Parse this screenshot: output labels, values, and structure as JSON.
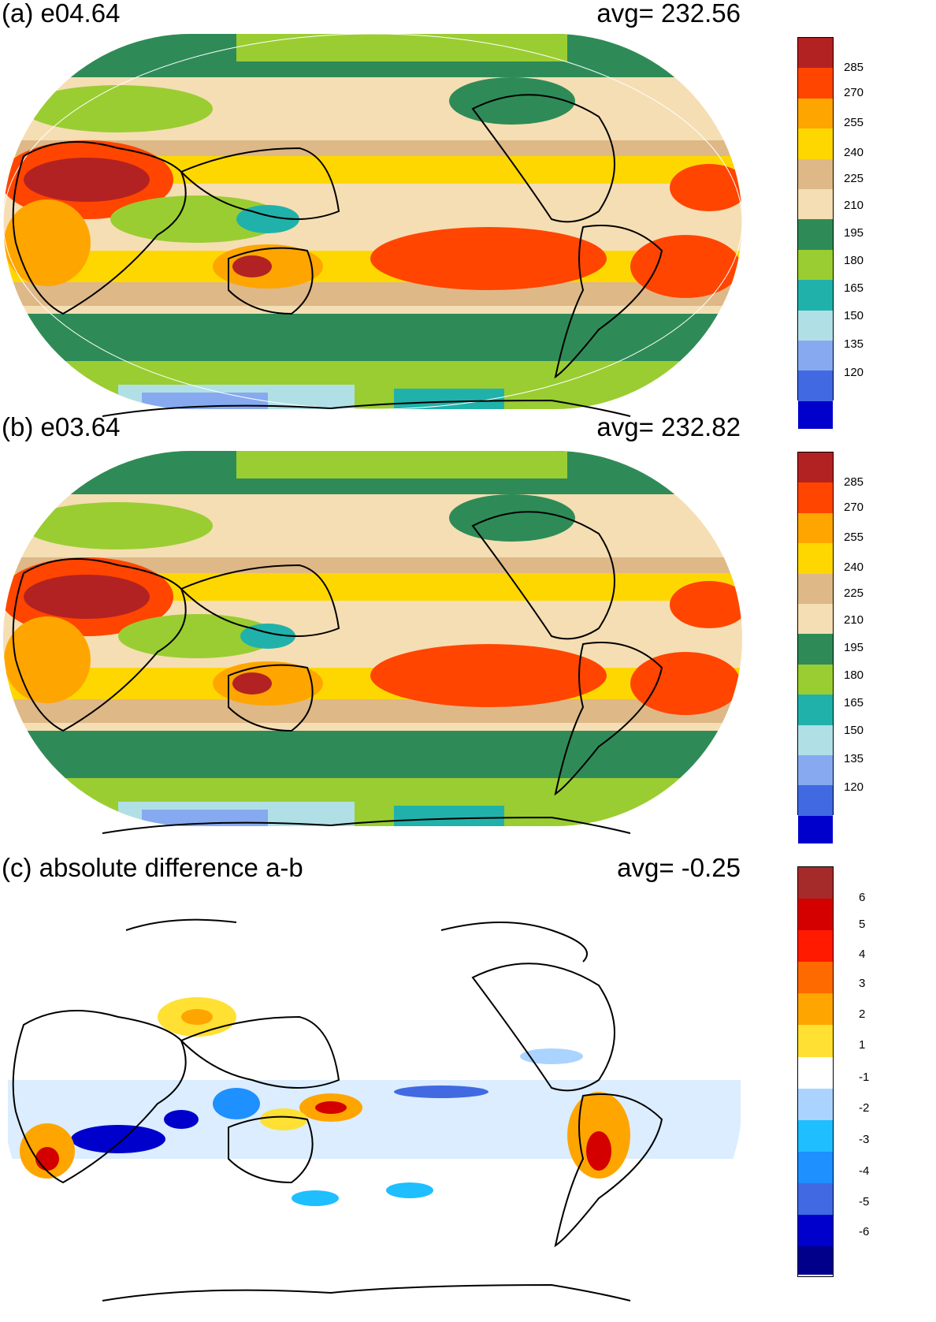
{
  "panels": [
    {
      "title": "(a) e04.64",
      "avg_label": "avg=  232.56",
      "colorbar": {
        "labels": [
          "285",
          "270",
          "255",
          "240",
          "225",
          "210",
          "195",
          "180",
          "165",
          "150",
          "135",
          "120"
        ],
        "colors": [
          "#b22222",
          "#ff4500",
          "#ffa500",
          "#ffd700",
          "#deb887",
          "#f5deb3",
          "#2e8b57",
          "#9acd32",
          "#20b2aa",
          "#b0e0e6",
          "#87a9f0",
          "#4169e1",
          "#0000cd"
        ]
      }
    },
    {
      "title": "(b) e03.64",
      "avg_label": "avg=  232.82",
      "colorbar": {
        "labels": [
          "285",
          "270",
          "255",
          "240",
          "225",
          "210",
          "195",
          "180",
          "165",
          "150",
          "135",
          "120"
        ],
        "colors": [
          "#b22222",
          "#ff4500",
          "#ffa500",
          "#ffd700",
          "#deb887",
          "#f5deb3",
          "#2e8b57",
          "#9acd32",
          "#20b2aa",
          "#b0e0e6",
          "#87a9f0",
          "#4169e1",
          "#0000cd"
        ]
      }
    },
    {
      "title": "(c) absolute difference a-b",
      "avg_label": "avg=   -0.25",
      "colorbar": {
        "labels": [
          "6",
          "5",
          "4",
          "3",
          "2",
          "1",
          "-1",
          "-2",
          "-3",
          "-4",
          "-5",
          "-6"
        ],
        "colors": [
          "#a52a2a",
          "#d40000",
          "#ff1a00",
          "#ff6a00",
          "#ffa500",
          "#ffe033",
          "#ffffff",
          "#aad4ff",
          "#1ebeff",
          "#1e90ff",
          "#4169e1",
          "#0000cd",
          "#00008b"
        ]
      }
    }
  ]
}
